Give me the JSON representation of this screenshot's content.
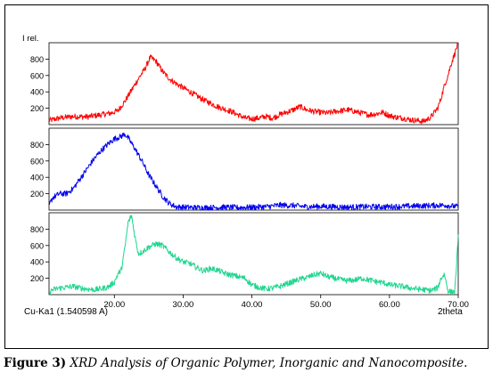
{
  "caption": {
    "label": "Figure 3)",
    "text": "XRD Analysis of Organic Polymer, Inorganic and Nanocomposite."
  },
  "chart_data": {
    "type": "line",
    "ylabel": "I rel.",
    "xlabel": "2theta",
    "radiation_label": "Cu-Ka1 (1.540598 A)",
    "xlim": [
      10.5,
      70
    ],
    "x_ticks": [
      20,
      30,
      40,
      50,
      60,
      70
    ],
    "x_tick_labels": [
      "20.00",
      "30.00",
      "40.00",
      "50.00",
      "60.00",
      "70.00"
    ],
    "grid": false,
    "panels": [
      {
        "color": "#ff0000",
        "ylim": [
          0,
          1000
        ],
        "y_ticks": [
          200,
          400,
          600,
          800
        ],
        "y_tick_labels": [
          "200",
          "400",
          "600",
          "800"
        ],
        "x": [
          10.5,
          12,
          14,
          16,
          18,
          19.5,
          20.5,
          21.5,
          22.5,
          23.5,
          24.5,
          25.2,
          26,
          27,
          28,
          29,
          30,
          31,
          32,
          33,
          34,
          35,
          36,
          37,
          38,
          39,
          40,
          41,
          42,
          43,
          44,
          45,
          46,
          47,
          48,
          49,
          50,
          51,
          52,
          53,
          54,
          55,
          56,
          57,
          58,
          59,
          60,
          61,
          62,
          63,
          64,
          65,
          66,
          67,
          67.5,
          68,
          68.5,
          69,
          69.5,
          70
        ],
        "y": [
          50,
          80,
          100,
          95,
          120,
          140,
          170,
          280,
          420,
          560,
          690,
          820,
          780,
          650,
          560,
          500,
          450,
          400,
          350,
          300,
          260,
          220,
          190,
          160,
          120,
          80,
          70,
          80,
          100,
          80,
          120,
          150,
          180,
          220,
          180,
          160,
          150,
          140,
          160,
          170,
          180,
          160,
          140,
          120,
          130,
          150,
          110,
          90,
          80,
          60,
          50,
          40,
          90,
          200,
          320,
          480,
          600,
          750,
          870,
          1000
        ]
      },
      {
        "color": "#0000ee",
        "ylim": [
          0,
          1000
        ],
        "y_ticks": [
          200,
          400,
          600,
          800
        ],
        "y_tick_labels": [
          "200",
          "400",
          "600",
          "800"
        ],
        "x": [
          10.5,
          11,
          12,
          13,
          14,
          15,
          16,
          17,
          18,
          19,
          20,
          21,
          21.5,
          22,
          23,
          24,
          25,
          26,
          27,
          28,
          29,
          30,
          32,
          34,
          36,
          38,
          40,
          42,
          44,
          46,
          48,
          50,
          52,
          54,
          56,
          58,
          60,
          62,
          64,
          66,
          68,
          69,
          70
        ],
        "y": [
          50,
          150,
          200,
          200,
          260,
          380,
          500,
          620,
          720,
          800,
          870,
          900,
          930,
          880,
          750,
          600,
          430,
          300,
          170,
          80,
          40,
          35,
          30,
          30,
          35,
          30,
          35,
          40,
          60,
          55,
          40,
          45,
          40,
          35,
          40,
          40,
          40,
          45,
          50,
          55,
          60,
          50,
          40
        ]
      },
      {
        "color": "#1fd68f",
        "ylim": [
          0,
          1000
        ],
        "y_ticks": [
          200,
          400,
          600,
          800
        ],
        "y_tick_labels": [
          "200",
          "400",
          "600",
          "800"
        ],
        "x": [
          10.5,
          11,
          12,
          13,
          14,
          15,
          16,
          17,
          18,
          19,
          20,
          20.5,
          21,
          21.5,
          22,
          22.5,
          23,
          23.5,
          24,
          25,
          26,
          27,
          28,
          29,
          30,
          31,
          32,
          33,
          34,
          35,
          36,
          37,
          38,
          39,
          40,
          41,
          42,
          43,
          44,
          45,
          46,
          47,
          48,
          49,
          50,
          51,
          52,
          53,
          54,
          55,
          56,
          57,
          58,
          59,
          60,
          61,
          62,
          63,
          64,
          65,
          66,
          67,
          67.5,
          68,
          68.5,
          69,
          69.5,
          70
        ],
        "y": [
          20,
          60,
          80,
          90,
          100,
          80,
          70,
          60,
          70,
          90,
          150,
          250,
          300,
          550,
          880,
          970,
          700,
          500,
          520,
          580,
          620,
          600,
          520,
          450,
          400,
          380,
          330,
          290,
          320,
          300,
          260,
          240,
          220,
          200,
          120,
          90,
          70,
          80,
          100,
          130,
          160,
          190,
          210,
          240,
          260,
          220,
          200,
          180,
          170,
          180,
          200,
          180,
          160,
          150,
          120,
          110,
          100,
          80,
          70,
          60,
          50,
          80,
          200,
          250,
          50,
          30,
          40,
          700
        ]
      }
    ]
  }
}
